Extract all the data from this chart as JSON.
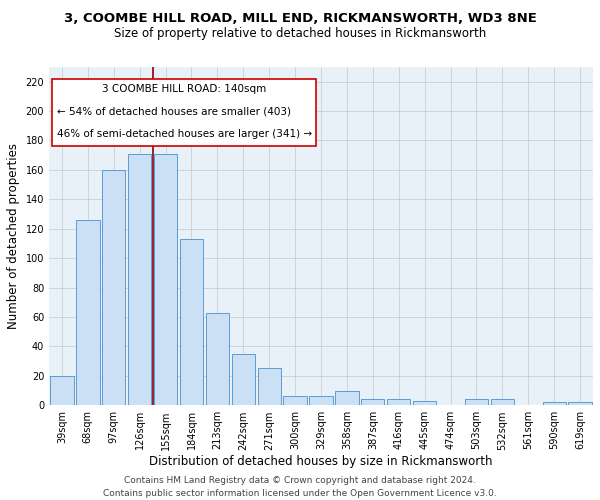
{
  "title_line1": "3, COOMBE HILL ROAD, MILL END, RICKMANSWORTH, WD3 8NE",
  "title_line2": "Size of property relative to detached houses in Rickmansworth",
  "xlabel": "Distribution of detached houses by size in Rickmansworth",
  "ylabel": "Number of detached properties",
  "categories": [
    "39sqm",
    "68sqm",
    "97sqm",
    "126sqm",
    "155sqm",
    "184sqm",
    "213sqm",
    "242sqm",
    "271sqm",
    "300sqm",
    "329sqm",
    "358sqm",
    "387sqm",
    "416sqm",
    "445sqm",
    "474sqm",
    "503sqm",
    "532sqm",
    "561sqm",
    "590sqm",
    "619sqm"
  ],
  "values": [
    20,
    126,
    160,
    171,
    171,
    113,
    63,
    35,
    25,
    6,
    6,
    10,
    4,
    4,
    3,
    0,
    4,
    4,
    0,
    2,
    2
  ],
  "bar_color": "#cce0f5",
  "bar_edge_color": "#5b9bd5",
  "ylim": [
    0,
    230
  ],
  "yticks": [
    0,
    20,
    40,
    60,
    80,
    100,
    120,
    140,
    160,
    180,
    200,
    220
  ],
  "vline_color": "#8b0000",
  "vline_x": 3.5,
  "annotation_text_line1": "3 COOMBE HILL ROAD: 140sqm",
  "annotation_text_line2": "← 54% of detached houses are smaller (403)",
  "annotation_text_line3": "46% of semi-detached houses are larger (341) →",
  "footer_line1": "Contains HM Land Registry data © Crown copyright and database right 2024.",
  "footer_line2": "Contains public sector information licensed under the Open Government Licence v3.0.",
  "background_color": "#ffffff",
  "plot_bg_color": "#e8f0f8",
  "grid_color": "#c0c8d0",
  "title_fontsize": 9.5,
  "subtitle_fontsize": 8.5,
  "axis_label_fontsize": 8.5,
  "tick_fontsize": 7,
  "annotation_fontsize": 7.5,
  "footer_fontsize": 6.5
}
